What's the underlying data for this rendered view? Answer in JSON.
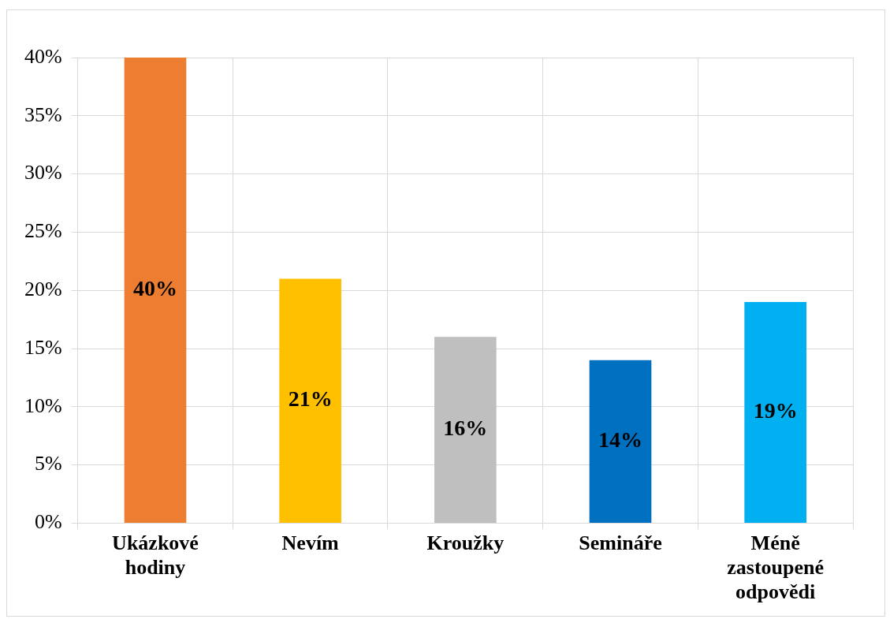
{
  "chart_data": {
    "type": "bar",
    "categories": [
      "Ukázkové hodiny",
      "Nevím",
      "Kroužky",
      "Semináře",
      "Méně zastoupené odpovědi"
    ],
    "values": [
      40,
      21,
      16,
      14,
      19
    ],
    "colors": [
      "#ed7d31",
      "#ffc000",
      "#bfbfbf",
      "#0070c0",
      "#00b0f0"
    ],
    "value_labels": [
      "40%",
      "21%",
      "16%",
      "14%",
      "19%"
    ],
    "ylim": [
      0,
      40
    ],
    "yticks": [
      {
        "value": 0,
        "label": "0%"
      },
      {
        "value": 5,
        "label": "5%"
      },
      {
        "value": 10,
        "label": "10%"
      },
      {
        "value": 15,
        "label": "15%"
      },
      {
        "value": 20,
        "label": "20%"
      },
      {
        "value": 25,
        "label": "25%"
      },
      {
        "value": 30,
        "label": "30%"
      },
      {
        "value": 35,
        "label": "35%"
      },
      {
        "value": 40,
        "label": "40%"
      }
    ],
    "grid": true,
    "legend": false
  }
}
